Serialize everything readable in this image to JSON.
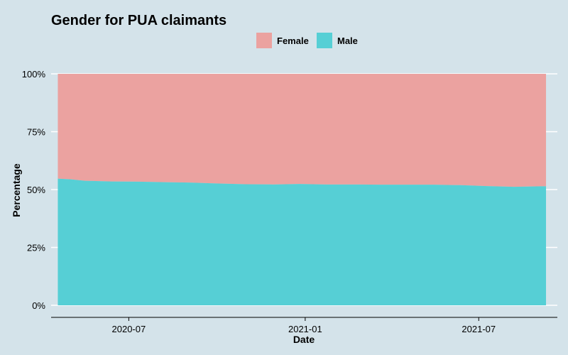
{
  "chart_data": {
    "type": "area",
    "stacked": true,
    "normalized_percent": true,
    "title": "Gender for PUA claimants",
    "xlabel": "Date",
    "ylabel": "Percentage",
    "ylim": [
      0,
      100
    ],
    "yticks": [
      0,
      25,
      50,
      75,
      100
    ],
    "ytick_labels": [
      "0%",
      "25%",
      "50%",
      "75%",
      "100%"
    ],
    "xlim": [
      "2020-04-11",
      "2021-09-21"
    ],
    "xticks": [
      "2020-07-01",
      "2021-01-01",
      "2021-07-01"
    ],
    "xtick_labels": [
      "2020-07",
      "2021-01",
      "2021-07"
    ],
    "legend_position": "top",
    "grid": true,
    "x": [
      "2020-04-18",
      "2020-05-02",
      "2020-05-16",
      "2020-06-13",
      "2020-07-11",
      "2020-08-08",
      "2020-09-05",
      "2020-10-03",
      "2020-10-31",
      "2020-11-28",
      "2020-12-26",
      "2021-01-23",
      "2021-02-20",
      "2021-03-20",
      "2021-04-17",
      "2021-05-15",
      "2021-06-12",
      "2021-07-10",
      "2021-08-07",
      "2021-09-04"
    ],
    "series": [
      {
        "name": "Female",
        "color": "#eba2a0",
        "values": [
          45.3,
          45.6,
          46.2,
          46.5,
          46.6,
          46.8,
          47.0,
          47.4,
          47.7,
          47.8,
          47.6,
          47.8,
          47.8,
          47.9,
          47.9,
          47.9,
          48.1,
          48.5,
          48.8,
          48.6
        ]
      },
      {
        "name": "Male",
        "color": "#56cfd5",
        "values": [
          54.7,
          54.4,
          53.8,
          53.5,
          53.4,
          53.2,
          53.0,
          52.6,
          52.3,
          52.2,
          52.4,
          52.2,
          52.2,
          52.1,
          52.1,
          52.1,
          51.9,
          51.5,
          51.2,
          51.4
        ]
      }
    ]
  }
}
